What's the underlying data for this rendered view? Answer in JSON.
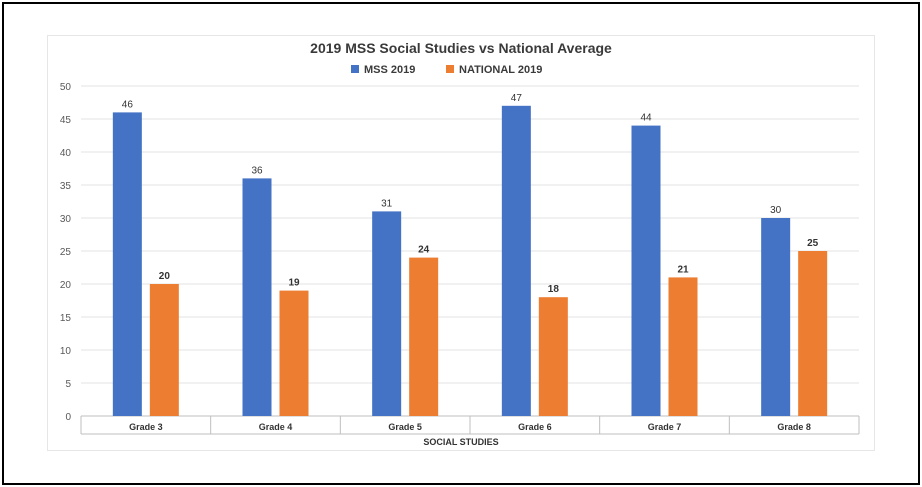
{
  "chart_data": {
    "type": "bar",
    "title": "2019 MSS Social Studies vs National  Average",
    "xlabel": "SOCIAL STUDIES",
    "ylabel": "",
    "ylim": [
      0,
      50
    ],
    "yticks": [
      0,
      5,
      10,
      15,
      20,
      25,
      30,
      35,
      40,
      45,
      50
    ],
    "categories": [
      "Grade 3",
      "Grade 4",
      "Grade 5",
      "Grade 6",
      "Grade 7",
      "Grade 8"
    ],
    "series": [
      {
        "name": "MSS 2019",
        "color": "#4472c4",
        "values": [
          46,
          36,
          31,
          47,
          44,
          30
        ]
      },
      {
        "name": "NATIONAL 2019",
        "color": "#ed7d31",
        "values": [
          20,
          19,
          24,
          18,
          21,
          25
        ]
      }
    ],
    "legend_position": "top",
    "grid": true
  }
}
